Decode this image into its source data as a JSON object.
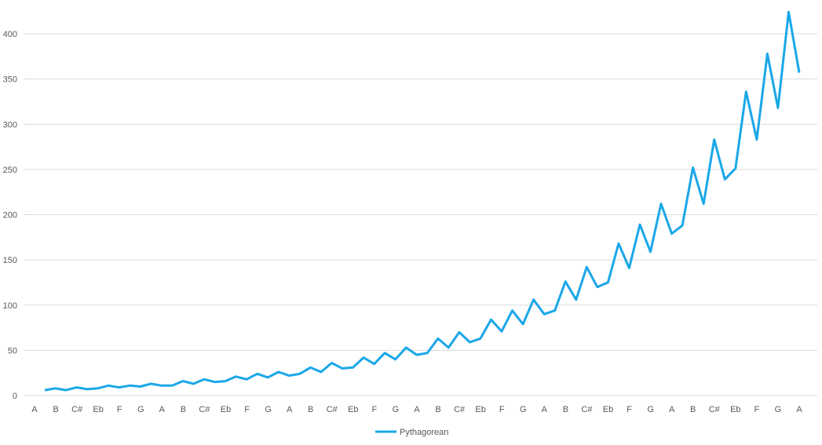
{
  "chart_data": {
    "type": "line",
    "title": "",
    "xlabel": "",
    "ylabel": "",
    "ylim": [
      0,
      430
    ],
    "yticks": [
      0,
      50,
      100,
      150,
      200,
      250,
      300,
      350,
      400
    ],
    "grid": true,
    "legend_position": "bottom",
    "x_tick_labels": [
      "A",
      "B",
      "C#",
      "Eb",
      "F",
      "G",
      "A",
      "B",
      "C#",
      "Eb",
      "F",
      "G",
      "A",
      "B",
      "C#",
      "Eb",
      "F",
      "G",
      "A",
      "B",
      "C#",
      "Eb",
      "F",
      "G",
      "A",
      "B",
      "C#",
      "Eb",
      "F",
      "G",
      "A",
      "B",
      "C#",
      "Eb",
      "F",
      "G",
      "A"
    ],
    "series": [
      {
        "name": "Pythagorean",
        "color": "#1aa7e8",
        "values": [
          6,
          8,
          6,
          9,
          7,
          8,
          11,
          9,
          11,
          10,
          13,
          11,
          11,
          16,
          13,
          18,
          15,
          16,
          21,
          18,
          24,
          20,
          26,
          22,
          24,
          31,
          26,
          36,
          30,
          31,
          42,
          35,
          47,
          40,
          53,
          45,
          47,
          63,
          53,
          70,
          59,
          63,
          84,
          71,
          94,
          79,
          106,
          90,
          94,
          126,
          106,
          142,
          120,
          125,
          168,
          141,
          189,
          159,
          212,
          179,
          188,
          252,
          212,
          283,
          239,
          251,
          336,
          283,
          378,
          318,
          424,
          357
        ]
      }
    ]
  }
}
